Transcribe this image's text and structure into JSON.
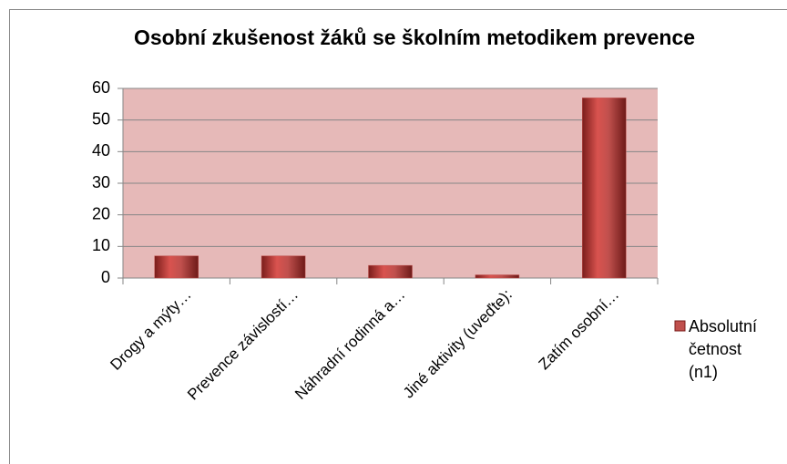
{
  "chart_data": {
    "type": "bar",
    "title": "Osobní zkušenost žáků se školním metodikem prevence",
    "categories": [
      "Drogy a mýty…",
      "Prevence závislostí…",
      "Náhradní rodinná a…",
      "Jiné aktivity (uveďte):",
      "Zatím osobní…"
    ],
    "series": [
      {
        "name": "Absolutní četnost (n1)",
        "color": "#c0504d",
        "values": [
          7,
          7,
          4,
          1,
          57
        ]
      }
    ],
    "ylim": [
      0,
      60
    ],
    "yticks": [
      0,
      10,
      20,
      30,
      40,
      50,
      60
    ],
    "grid": true,
    "legend": "right"
  }
}
